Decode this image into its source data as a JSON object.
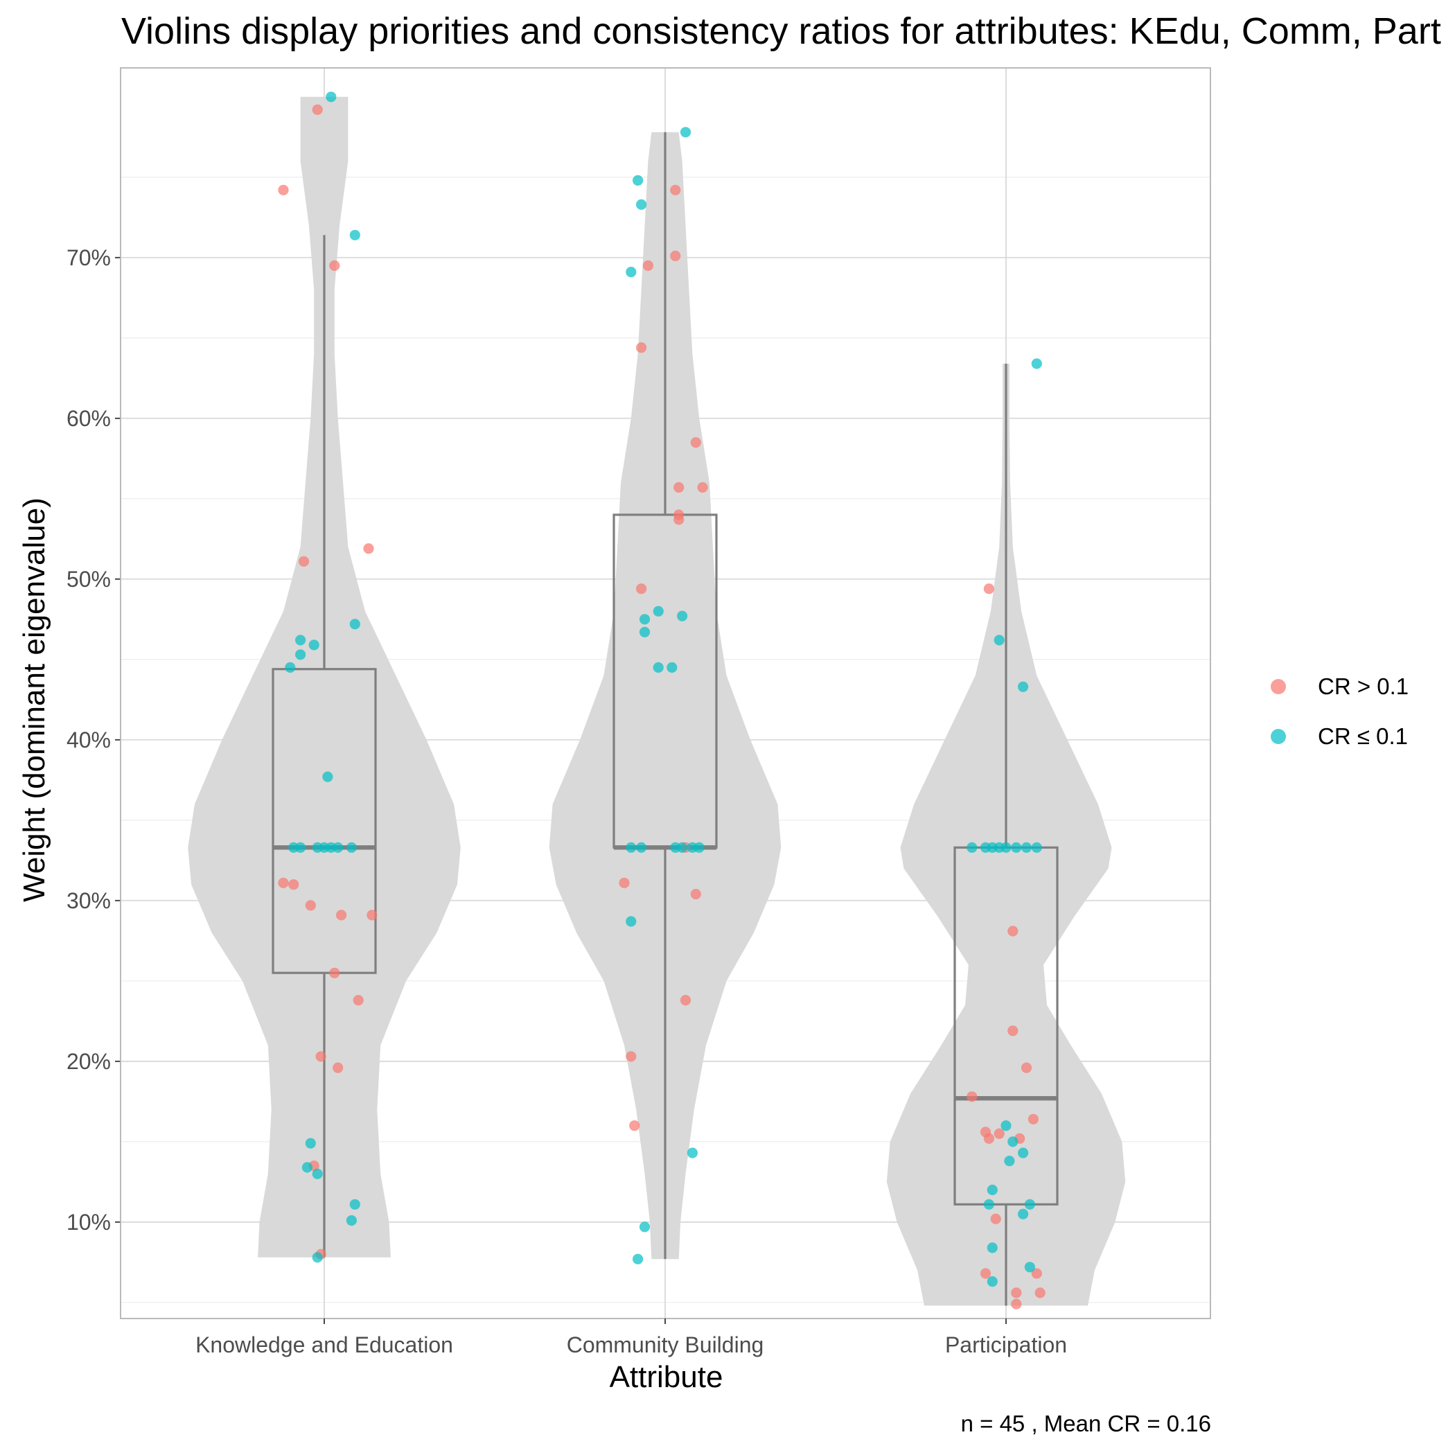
{
  "chart_data": {
    "type": "violin",
    "title": "Violins display priorities and consistency ratios for attributes: KEdu, Comm, Part",
    "xlabel": "Attribute",
    "ylabel": "Weight (dominant eigenvalue)",
    "caption": "n = 45 , Mean CR = 0.16",
    "categories": [
      "Knowledge and Education",
      "Community Building",
      "Participation"
    ],
    "y_ticks": [
      {
        "value": 0.1,
        "label": "10%"
      },
      {
        "value": 0.2,
        "label": "20%"
      },
      {
        "value": 0.3,
        "label": "30%"
      },
      {
        "value": 0.4,
        "label": "40%"
      },
      {
        "value": 0.5,
        "label": "50%"
      },
      {
        "value": 0.6,
        "label": "60%"
      },
      {
        "value": 0.7,
        "label": "70%"
      }
    ],
    "ylim": [
      0.04,
      0.818
    ],
    "grid": true,
    "legend": {
      "position": "right",
      "items": [
        {
          "label": "CR > 0.1",
          "color": "#F8766D",
          "group": "high"
        },
        {
          "label": "CR ≤ 0.1",
          "color": "#00BFC4",
          "group": "low"
        }
      ]
    },
    "colors": {
      "violin": "#d9d9d9",
      "box": "#7f7f7f",
      "grid_major": "#d9d9d9",
      "grid_minor": "#ececec",
      "panel_border": "#b3b3b3"
    },
    "boxes": [
      {
        "category": "Knowledge and Education",
        "q1": 0.255,
        "median": 0.333,
        "q3": 0.444,
        "whisker_low": 0.078,
        "whisker_high": 0.714
      },
      {
        "category": "Community Building",
        "q1": 0.333,
        "median": 0.333,
        "q3": 0.54,
        "whisker_low": 0.077,
        "whisker_high": 0.778
      },
      {
        "category": "Participation",
        "q1": 0.111,
        "median": 0.177,
        "q3": 0.333,
        "whisker_low": 0.048,
        "whisker_high": 0.634
      }
    ],
    "violins": [
      {
        "category": "Knowledge and Education",
        "y_min": 0.078,
        "y_max": 0.8,
        "profile": [
          [
            0.078,
            0.195
          ],
          [
            0.1,
            0.19
          ],
          [
            0.13,
            0.165
          ],
          [
            0.17,
            0.155
          ],
          [
            0.21,
            0.165
          ],
          [
            0.25,
            0.24
          ],
          [
            0.28,
            0.33
          ],
          [
            0.31,
            0.39
          ],
          [
            0.333,
            0.4
          ],
          [
            0.36,
            0.38
          ],
          [
            0.4,
            0.3
          ],
          [
            0.44,
            0.21
          ],
          [
            0.48,
            0.12
          ],
          [
            0.52,
            0.07
          ],
          [
            0.56,
            0.055
          ],
          [
            0.6,
            0.04
          ],
          [
            0.64,
            0.03
          ],
          [
            0.68,
            0.03
          ],
          [
            0.72,
            0.045
          ],
          [
            0.76,
            0.07
          ],
          [
            0.79,
            0.07
          ],
          [
            0.8,
            0.07
          ]
        ]
      },
      {
        "category": "Community Building",
        "y_min": 0.077,
        "y_max": 0.778,
        "profile": [
          [
            0.077,
            0.04
          ],
          [
            0.1,
            0.045
          ],
          [
            0.13,
            0.06
          ],
          [
            0.17,
            0.085
          ],
          [
            0.21,
            0.12
          ],
          [
            0.25,
            0.18
          ],
          [
            0.28,
            0.26
          ],
          [
            0.31,
            0.32
          ],
          [
            0.333,
            0.34
          ],
          [
            0.36,
            0.33
          ],
          [
            0.4,
            0.25
          ],
          [
            0.44,
            0.18
          ],
          [
            0.48,
            0.15
          ],
          [
            0.52,
            0.14
          ],
          [
            0.56,
            0.13
          ],
          [
            0.6,
            0.1
          ],
          [
            0.64,
            0.08
          ],
          [
            0.68,
            0.07
          ],
          [
            0.72,
            0.06
          ],
          [
            0.76,
            0.05
          ],
          [
            0.778,
            0.04
          ]
        ]
      },
      {
        "category": "Participation",
        "y_min": 0.048,
        "y_max": 0.634,
        "profile": [
          [
            0.048,
            0.24
          ],
          [
            0.07,
            0.26
          ],
          [
            0.1,
            0.32
          ],
          [
            0.125,
            0.35
          ],
          [
            0.15,
            0.34
          ],
          [
            0.18,
            0.28
          ],
          [
            0.21,
            0.19
          ],
          [
            0.235,
            0.12
          ],
          [
            0.26,
            0.11
          ],
          [
            0.29,
            0.2
          ],
          [
            0.32,
            0.3
          ],
          [
            0.333,
            0.31
          ],
          [
            0.36,
            0.27
          ],
          [
            0.4,
            0.18
          ],
          [
            0.44,
            0.09
          ],
          [
            0.48,
            0.045
          ],
          [
            0.52,
            0.02
          ],
          [
            0.56,
            0.012
          ],
          [
            0.6,
            0.01
          ],
          [
            0.634,
            0.01
          ]
        ]
      }
    ],
    "series": [
      {
        "name": "CR > 0.1",
        "group": "high",
        "points": [
          {
            "cat": 0,
            "jitter": -0.02,
            "y": 0.792
          },
          {
            "cat": 0,
            "jitter": -0.12,
            "y": 0.742
          },
          {
            "cat": 0,
            "jitter": 0.03,
            "y": 0.695
          },
          {
            "cat": 0,
            "jitter": -0.06,
            "y": 0.511
          },
          {
            "cat": 0,
            "jitter": 0.13,
            "y": 0.519
          },
          {
            "cat": 0,
            "jitter": -0.12,
            "y": 0.311
          },
          {
            "cat": 0,
            "jitter": -0.09,
            "y": 0.31
          },
          {
            "cat": 0,
            "jitter": -0.04,
            "y": 0.297
          },
          {
            "cat": 0,
            "jitter": 0.05,
            "y": 0.291
          },
          {
            "cat": 0,
            "jitter": 0.14,
            "y": 0.291
          },
          {
            "cat": 0,
            "jitter": 0.03,
            "y": 0.255
          },
          {
            "cat": 0,
            "jitter": 0.1,
            "y": 0.238
          },
          {
            "cat": 0,
            "jitter": -0.01,
            "y": 0.203
          },
          {
            "cat": 0,
            "jitter": 0.04,
            "y": 0.196
          },
          {
            "cat": 0,
            "jitter": -0.03,
            "y": 0.135
          },
          {
            "cat": 0,
            "jitter": -0.01,
            "y": 0.08
          },
          {
            "cat": 1,
            "jitter": 0.03,
            "y": 0.742
          },
          {
            "cat": 1,
            "jitter": 0.03,
            "y": 0.701
          },
          {
            "cat": 1,
            "jitter": -0.05,
            "y": 0.695
          },
          {
            "cat": 1,
            "jitter": -0.07,
            "y": 0.644
          },
          {
            "cat": 1,
            "jitter": 0.09,
            "y": 0.585
          },
          {
            "cat": 1,
            "jitter": 0.04,
            "y": 0.557
          },
          {
            "cat": 1,
            "jitter": 0.11,
            "y": 0.557
          },
          {
            "cat": 1,
            "jitter": 0.04,
            "y": 0.54
          },
          {
            "cat": 1,
            "jitter": 0.04,
            "y": 0.537
          },
          {
            "cat": 1,
            "jitter": -0.07,
            "y": 0.494
          },
          {
            "cat": 1,
            "jitter": 0.06,
            "y": 0.333
          },
          {
            "cat": 1,
            "jitter": -0.12,
            "y": 0.311
          },
          {
            "cat": 1,
            "jitter": 0.09,
            "y": 0.304
          },
          {
            "cat": 1,
            "jitter": 0.06,
            "y": 0.238
          },
          {
            "cat": 1,
            "jitter": -0.1,
            "y": 0.203
          },
          {
            "cat": 1,
            "jitter": -0.09,
            "y": 0.16
          },
          {
            "cat": 2,
            "jitter": -0.05,
            "y": 0.494
          },
          {
            "cat": 2,
            "jitter": 0.02,
            "y": 0.281
          },
          {
            "cat": 2,
            "jitter": 0.02,
            "y": 0.219
          },
          {
            "cat": 2,
            "jitter": 0.06,
            "y": 0.196
          },
          {
            "cat": 2,
            "jitter": -0.1,
            "y": 0.178
          },
          {
            "cat": 2,
            "jitter": 0.08,
            "y": 0.164
          },
          {
            "cat": 2,
            "jitter": -0.06,
            "y": 0.156
          },
          {
            "cat": 2,
            "jitter": -0.02,
            "y": 0.155
          },
          {
            "cat": 2,
            "jitter": -0.05,
            "y": 0.152
          },
          {
            "cat": 2,
            "jitter": 0.04,
            "y": 0.152
          },
          {
            "cat": 2,
            "jitter": -0.03,
            "y": 0.102
          },
          {
            "cat": 2,
            "jitter": -0.06,
            "y": 0.068
          },
          {
            "cat": 2,
            "jitter": 0.09,
            "y": 0.068
          },
          {
            "cat": 2,
            "jitter": 0.03,
            "y": 0.056
          },
          {
            "cat": 2,
            "jitter": 0.1,
            "y": 0.056
          },
          {
            "cat": 2,
            "jitter": 0.03,
            "y": 0.049
          }
        ]
      },
      {
        "name": "CR ≤ 0.1",
        "group": "low",
        "points": [
          {
            "cat": 0,
            "jitter": 0.02,
            "y": 0.8
          },
          {
            "cat": 0,
            "jitter": 0.09,
            "y": 0.714
          },
          {
            "cat": 0,
            "jitter": 0.09,
            "y": 0.472
          },
          {
            "cat": 0,
            "jitter": -0.07,
            "y": 0.462
          },
          {
            "cat": 0,
            "jitter": -0.03,
            "y": 0.459
          },
          {
            "cat": 0,
            "jitter": -0.07,
            "y": 0.453
          },
          {
            "cat": 0,
            "jitter": -0.1,
            "y": 0.445
          },
          {
            "cat": 0,
            "jitter": 0.01,
            "y": 0.377
          },
          {
            "cat": 0,
            "jitter": -0.09,
            "y": 0.333
          },
          {
            "cat": 0,
            "jitter": -0.07,
            "y": 0.333
          },
          {
            "cat": 0,
            "jitter": -0.02,
            "y": 0.333
          },
          {
            "cat": 0,
            "jitter": 0.0,
            "y": 0.333
          },
          {
            "cat": 0,
            "jitter": 0.02,
            "y": 0.333
          },
          {
            "cat": 0,
            "jitter": 0.04,
            "y": 0.333
          },
          {
            "cat": 0,
            "jitter": 0.08,
            "y": 0.333
          },
          {
            "cat": 0,
            "jitter": -0.04,
            "y": 0.149
          },
          {
            "cat": 0,
            "jitter": -0.05,
            "y": 0.134
          },
          {
            "cat": 0,
            "jitter": -0.02,
            "y": 0.13
          },
          {
            "cat": 0,
            "jitter": 0.09,
            "y": 0.111
          },
          {
            "cat": 0,
            "jitter": 0.08,
            "y": 0.101
          },
          {
            "cat": 0,
            "jitter": -0.02,
            "y": 0.078
          },
          {
            "cat": 1,
            "jitter": 0.06,
            "y": 0.778
          },
          {
            "cat": 1,
            "jitter": -0.08,
            "y": 0.748
          },
          {
            "cat": 1,
            "jitter": -0.07,
            "y": 0.733
          },
          {
            "cat": 1,
            "jitter": -0.1,
            "y": 0.691
          },
          {
            "cat": 1,
            "jitter": -0.02,
            "y": 0.48
          },
          {
            "cat": 1,
            "jitter": 0.05,
            "y": 0.477
          },
          {
            "cat": 1,
            "jitter": -0.06,
            "y": 0.475
          },
          {
            "cat": 1,
            "jitter": -0.06,
            "y": 0.467
          },
          {
            "cat": 1,
            "jitter": -0.02,
            "y": 0.445
          },
          {
            "cat": 1,
            "jitter": 0.02,
            "y": 0.445
          },
          {
            "cat": 1,
            "jitter": -0.1,
            "y": 0.333
          },
          {
            "cat": 1,
            "jitter": -0.07,
            "y": 0.333
          },
          {
            "cat": 1,
            "jitter": 0.03,
            "y": 0.333
          },
          {
            "cat": 1,
            "jitter": 0.05,
            "y": 0.333
          },
          {
            "cat": 1,
            "jitter": 0.08,
            "y": 0.333
          },
          {
            "cat": 1,
            "jitter": 0.1,
            "y": 0.333
          },
          {
            "cat": 1,
            "jitter": -0.1,
            "y": 0.287
          },
          {
            "cat": 1,
            "jitter": 0.08,
            "y": 0.143
          },
          {
            "cat": 1,
            "jitter": -0.06,
            "y": 0.097
          },
          {
            "cat": 1,
            "jitter": -0.08,
            "y": 0.077
          },
          {
            "cat": 2,
            "jitter": 0.09,
            "y": 0.634
          },
          {
            "cat": 2,
            "jitter": -0.02,
            "y": 0.462
          },
          {
            "cat": 2,
            "jitter": 0.05,
            "y": 0.433
          },
          {
            "cat": 2,
            "jitter": -0.1,
            "y": 0.333
          },
          {
            "cat": 2,
            "jitter": -0.06,
            "y": 0.333
          },
          {
            "cat": 2,
            "jitter": -0.04,
            "y": 0.333
          },
          {
            "cat": 2,
            "jitter": -0.02,
            "y": 0.333
          },
          {
            "cat": 2,
            "jitter": 0.0,
            "y": 0.333
          },
          {
            "cat": 2,
            "jitter": 0.03,
            "y": 0.333
          },
          {
            "cat": 2,
            "jitter": 0.06,
            "y": 0.333
          },
          {
            "cat": 2,
            "jitter": 0.09,
            "y": 0.333
          },
          {
            "cat": 2,
            "jitter": 0.0,
            "y": 0.16
          },
          {
            "cat": 2,
            "jitter": 0.02,
            "y": 0.15
          },
          {
            "cat": 2,
            "jitter": 0.05,
            "y": 0.143
          },
          {
            "cat": 2,
            "jitter": 0.01,
            "y": 0.138
          },
          {
            "cat": 2,
            "jitter": -0.04,
            "y": 0.12
          },
          {
            "cat": 2,
            "jitter": 0.07,
            "y": 0.111
          },
          {
            "cat": 2,
            "jitter": -0.05,
            "y": 0.111
          },
          {
            "cat": 2,
            "jitter": 0.05,
            "y": 0.105
          },
          {
            "cat": 2,
            "jitter": -0.04,
            "y": 0.084
          },
          {
            "cat": 2,
            "jitter": 0.07,
            "y": 0.072
          },
          {
            "cat": 2,
            "jitter": -0.04,
            "y": 0.063
          }
        ]
      }
    ]
  }
}
